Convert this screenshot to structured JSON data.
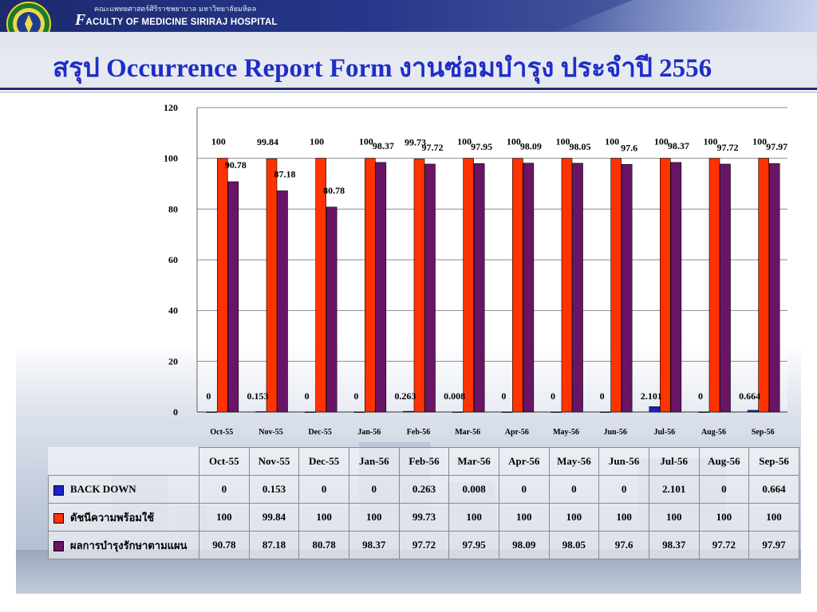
{
  "header": {
    "institution_thai": "คณะแพทยศาสตร์ศิริราชพยาบาล มหาวิทยาลัยมหิดล",
    "institution_en_initial": "F",
    "institution_en_rest": "ACULTY OF  MEDICINE SIRIRAJ HOSPITAL",
    "page_title": "สรุป Occurrence Report Form งานซ่อมบำรุง ประจำปี 2556"
  },
  "colors": {
    "banner": "#1c2a6e",
    "title": "#1e2ec8",
    "series_backdown": "#1a22c8",
    "series_readiness": "#ff3300",
    "series_maintenance": "#6a1466"
  },
  "chart_data": {
    "type": "bar",
    "categories": [
      "Oct-55",
      "Nov-55",
      "Dec-55",
      "Jan-56",
      "Feb-56",
      "Mar-56",
      "Apr-56",
      "May-56",
      "Jun-56",
      "Jul-56",
      "Aug-56",
      "Sep-56"
    ],
    "series": [
      {
        "name": "BACK DOWN",
        "color": "#1a22c8",
        "values": [
          0,
          0.153,
          0,
          0,
          0.263,
          0.008,
          0,
          0,
          0,
          2.101,
          0,
          0.664
        ],
        "labels": [
          "0",
          "0.153",
          "0",
          "0",
          "0.263",
          "0.008",
          "0",
          "0",
          "0",
          "2.101",
          "0",
          "0.664"
        ]
      },
      {
        "name": "ดัชนีความพร้อมใช้",
        "color": "#ff3300",
        "values": [
          100,
          99.84,
          100,
          100,
          99.73,
          100,
          100,
          100,
          100,
          100,
          100,
          100
        ],
        "labels": [
          "100",
          "99.84",
          "100",
          "100",
          "99.73",
          "100",
          "100",
          "100",
          "100",
          "100",
          "100",
          "100"
        ]
      },
      {
        "name": "ผลการบำรุงรักษาตามแผน",
        "color": "#6a1466",
        "values": [
          90.78,
          87.18,
          80.78,
          98.37,
          97.72,
          97.95,
          98.09,
          98.05,
          97.6,
          98.37,
          97.72,
          97.97
        ],
        "labels": [
          "90.78",
          "87.18",
          "80.78",
          "98.37",
          "97.72",
          "97.95",
          "98.09",
          "98.05",
          "97.6",
          "98.37",
          "97.72",
          "97.97"
        ]
      }
    ],
    "yticks": [
      "0",
      "20",
      "40",
      "60",
      "80",
      "100",
      "120"
    ],
    "ylim": [
      0,
      120
    ],
    "grid": true,
    "legend": "data table below chart",
    "title": "",
    "xlabel": "",
    "ylabel": ""
  }
}
